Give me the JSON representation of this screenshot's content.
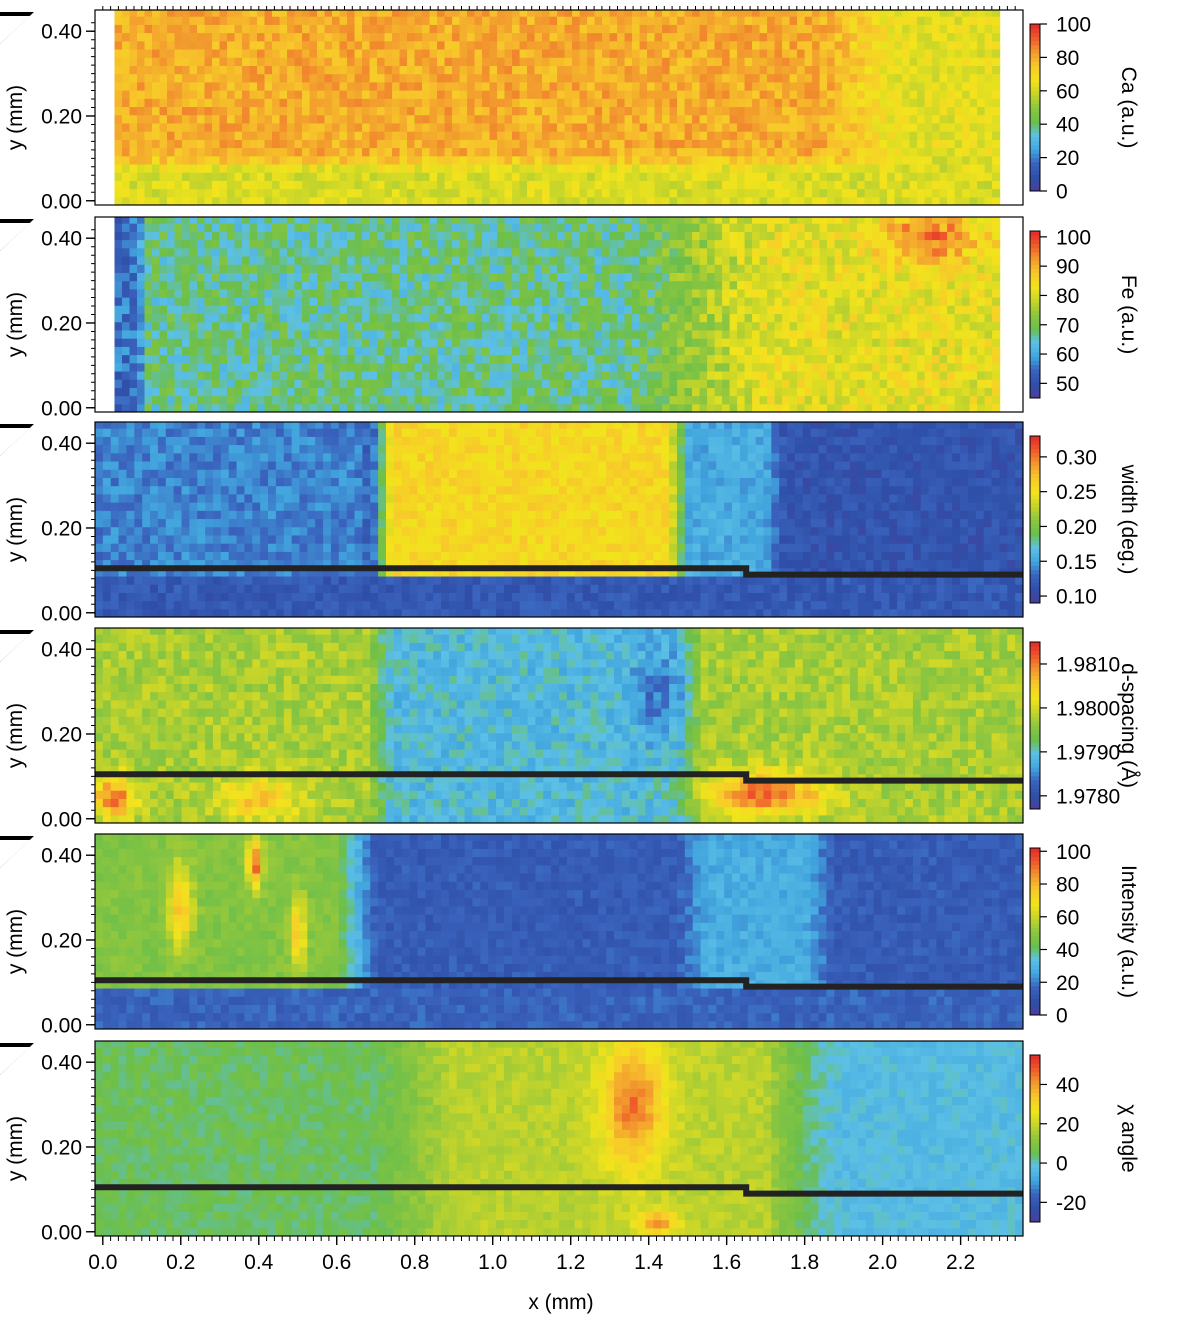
{
  "chart_data": {
    "type": "heatmap",
    "x": {
      "label": "x (mm)",
      "ticks": [
        "0.0",
        "0.2",
        "0.4",
        "0.6",
        "0.8",
        "1.0",
        "1.2",
        "1.4",
        "1.6",
        "1.8",
        "2.0",
        "2.2"
      ],
      "range": [
        -0.02,
        2.36
      ]
    },
    "y": {
      "label": "y (mm)",
      "ticks": [
        "0.00",
        "0.20",
        "0.40"
      ],
      "range": [
        -0.01,
        0.45
      ]
    },
    "boundary_line": {
      "color": "#222222",
      "points": [
        [
          -0.02,
          0.105
        ],
        [
          1.65,
          0.105
        ],
        [
          1.65,
          0.09
        ],
        [
          2.36,
          0.09
        ]
      ]
    },
    "colormap": [
      "#4b3f99",
      "#2f4fa8",
      "#3a63bd",
      "#42a6de",
      "#5cc0e6",
      "#6cbf4a",
      "#8dc63f",
      "#c7d52a",
      "#f2e41c",
      "#f7c92a",
      "#f29a2e",
      "#ef5a2a",
      "#e02a2a"
    ],
    "panels": [
      {
        "id": "ca",
        "name": "Ca",
        "colorbar_label": "Ca (a.u.)",
        "colorbar_ticks": [
          "100",
          "80",
          "60",
          "40",
          "20",
          "0"
        ],
        "range": [
          0,
          100
        ],
        "x_extent": [
          0.03,
          2.3
        ],
        "show_boundary": false,
        "features": [
          {
            "kind": "base",
            "value": 80
          },
          {
            "kind": "band_x",
            "x0": 2.05,
            "x1": 2.3,
            "value": 64,
            "fade": 0.2
          },
          {
            "kind": "band_y",
            "y0": -0.01,
            "y1": 0.07,
            "value": 62,
            "fade": 0.04
          }
        ],
        "noise": 6
      },
      {
        "id": "fe",
        "name": "Fe",
        "colorbar_label": "Fe (a.u.)",
        "colorbar_ticks": [
          "100",
          "90",
          "80",
          "70",
          "60",
          "50"
        ],
        "range": [
          45,
          102
        ],
        "x_extent": [
          0.03,
          2.3
        ],
        "show_boundary": false,
        "features": [
          {
            "kind": "base",
            "value": 67
          },
          {
            "kind": "band_x",
            "x0": 1.7,
            "x1": 2.3,
            "value": 82,
            "fade": 0.35
          },
          {
            "kind": "blob",
            "x": 2.12,
            "y": 0.4,
            "rx": 0.12,
            "ry": 0.06,
            "value": 96
          },
          {
            "kind": "band_x",
            "x0": 0.03,
            "x1": 0.09,
            "value": 55,
            "fade": 0.02
          }
        ],
        "noise": 5
      },
      {
        "id": "width",
        "name": "width",
        "colorbar_label": "width (deg.)",
        "colorbar_ticks": [
          "0.30",
          "0.25",
          "0.20",
          "0.15",
          "0.10"
        ],
        "range": [
          0.09,
          0.33
        ],
        "x_extent": [
          -0.02,
          2.36
        ],
        "show_boundary": true,
        "features": [
          {
            "kind": "base",
            "value": 0.115
          },
          {
            "kind": "band_x",
            "x0": 0.0,
            "x1": 0.65,
            "value": 0.14,
            "fade": 0.05
          },
          {
            "kind": "band_x",
            "x0": 0.74,
            "x1": 1.5,
            "value": 0.26,
            "fade": 0.05
          },
          {
            "kind": "band_x",
            "x0": 1.5,
            "x1": 1.7,
            "value": 0.155,
            "fade": 0.05
          },
          {
            "kind": "band_y",
            "y0": -0.01,
            "y1": 0.08,
            "value": 0.12,
            "fade": 0.01
          }
        ],
        "noise": 0.012
      },
      {
        "id": "dspacing",
        "name": "d-spacing",
        "colorbar_label": "d-spacing (Å)",
        "colorbar_ticks": [
          "1.9810",
          "1.9800",
          "1.9790",
          "1.9780"
        ],
        "range": [
          1.9777,
          1.9815
        ],
        "x_extent": [
          -0.02,
          2.36
        ],
        "show_boundary": true,
        "features": [
          {
            "kind": "base",
            "value": 1.97975
          },
          {
            "kind": "band_x",
            "x0": 0.74,
            "x1": 1.48,
            "value": 1.9789,
            "fade": 0.06
          },
          {
            "kind": "blob",
            "x": 1.42,
            "y": 0.3,
            "rx": 0.06,
            "ry": 0.1,
            "value": 1.9784
          },
          {
            "kind": "blob",
            "x": 1.7,
            "y": 0.06,
            "rx": 0.15,
            "ry": 0.05,
            "value": 1.9811
          },
          {
            "kind": "blob",
            "x": 0.03,
            "y": 0.05,
            "rx": 0.05,
            "ry": 0.05,
            "value": 1.9811
          },
          {
            "kind": "blob",
            "x": 0.4,
            "y": 0.05,
            "rx": 0.1,
            "ry": 0.05,
            "value": 1.9806
          }
        ],
        "noise": 0.00025
      },
      {
        "id": "intensity",
        "name": "Intensity",
        "colorbar_label": "Intensity (a.u.)",
        "colorbar_ticks": [
          "100",
          "80",
          "60",
          "40",
          "20",
          "0"
        ],
        "range": [
          0,
          102
        ],
        "x_extent": [
          -0.02,
          2.36
        ],
        "show_boundary": true,
        "features": [
          {
            "kind": "base",
            "value": 14
          },
          {
            "kind": "band_x",
            "x0": -0.02,
            "x1": 0.6,
            "value": 48,
            "fade": 0.1
          },
          {
            "kind": "band_x",
            "x0": 1.55,
            "x1": 1.8,
            "value": 28,
            "fade": 0.08
          },
          {
            "kind": "blob",
            "x": 0.2,
            "y": 0.28,
            "rx": 0.03,
            "ry": 0.1,
            "value": 78
          },
          {
            "kind": "blob",
            "x": 0.39,
            "y": 0.38,
            "rx": 0.02,
            "ry": 0.06,
            "value": 92
          },
          {
            "kind": "blob",
            "x": 0.5,
            "y": 0.22,
            "rx": 0.02,
            "ry": 0.08,
            "value": 78
          },
          {
            "kind": "band_y",
            "y0": -0.01,
            "y1": 0.085,
            "value": 16,
            "fade": 0.01
          }
        ],
        "noise": 4
      },
      {
        "id": "chi",
        "name": "χ angle",
        "colorbar_label": "χ angle",
        "colorbar_ticks": [
          "40",
          "20",
          "0",
          "-20"
        ],
        "range": [
          -30,
          55
        ],
        "x_extent": [
          -0.02,
          2.36
        ],
        "show_boundary": true,
        "features": [
          {
            "kind": "base",
            "value": 5
          },
          {
            "kind": "band_x",
            "x0": 0.9,
            "x1": 1.7,
            "value": 18,
            "fade": 0.2
          },
          {
            "kind": "blob",
            "x": 1.36,
            "y": 0.3,
            "rx": 0.08,
            "ry": 0.15,
            "value": 45
          },
          {
            "kind": "blob",
            "x": 1.42,
            "y": 0.02,
            "rx": 0.05,
            "ry": 0.03,
            "value": 42
          },
          {
            "kind": "band_x",
            "x0": 1.9,
            "x1": 2.36,
            "value": -3,
            "fade": 0.2
          }
        ],
        "noise": 3
      }
    ]
  }
}
